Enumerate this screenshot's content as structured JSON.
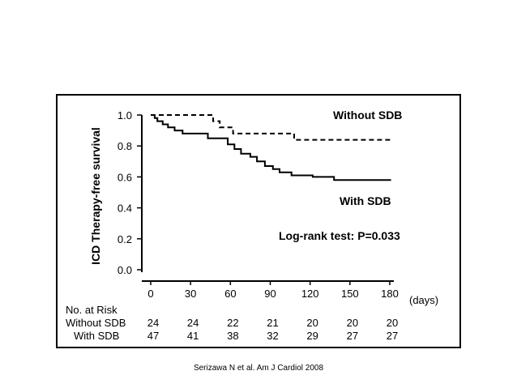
{
  "citation": "Serizawa N et al.  Am J Cardiol 2008",
  "chart_data": {
    "type": "line",
    "step": true,
    "ylabel": "ICD Therapy-free survival",
    "x_unit": "(days)",
    "xlim": [
      0,
      180
    ],
    "ylim": [
      0,
      1
    ],
    "x_ticks": [
      0,
      30,
      60,
      90,
      120,
      150,
      180
    ],
    "y_ticks": [
      "0.0",
      "0.2",
      "0.4",
      "0.6",
      "0.8",
      "1.0"
    ],
    "series": [
      {
        "name": "Without SDB",
        "style": "dashed",
        "points": [
          [
            0,
            1.0
          ],
          [
            47,
            1.0
          ],
          [
            47,
            0.96
          ],
          [
            52,
            0.96
          ],
          [
            52,
            0.92
          ],
          [
            62,
            0.92
          ],
          [
            62,
            0.88
          ],
          [
            108,
            0.88
          ],
          [
            108,
            0.84
          ],
          [
            181,
            0.84
          ]
        ]
      },
      {
        "name": "With SDB",
        "style": "solid",
        "points": [
          [
            0,
            1.0
          ],
          [
            3,
            1.0
          ],
          [
            3,
            0.98
          ],
          [
            5,
            0.98
          ],
          [
            5,
            0.96
          ],
          [
            9,
            0.96
          ],
          [
            9,
            0.94
          ],
          [
            13,
            0.94
          ],
          [
            13,
            0.92
          ],
          [
            18,
            0.92
          ],
          [
            18,
            0.9
          ],
          [
            24,
            0.9
          ],
          [
            24,
            0.88
          ],
          [
            43,
            0.88
          ],
          [
            43,
            0.85
          ],
          [
            58,
            0.85
          ],
          [
            58,
            0.81
          ],
          [
            63,
            0.81
          ],
          [
            63,
            0.78
          ],
          [
            68,
            0.78
          ],
          [
            68,
            0.75
          ],
          [
            75,
            0.75
          ],
          [
            75,
            0.73
          ],
          [
            80,
            0.73
          ],
          [
            80,
            0.7
          ],
          [
            86,
            0.7
          ],
          [
            86,
            0.67
          ],
          [
            92,
            0.67
          ],
          [
            92,
            0.65
          ],
          [
            97,
            0.65
          ],
          [
            97,
            0.63
          ],
          [
            106,
            0.63
          ],
          [
            106,
            0.61
          ],
          [
            122,
            0.61
          ],
          [
            122,
            0.6
          ],
          [
            138,
            0.6
          ],
          [
            138,
            0.58
          ],
          [
            181,
            0.58
          ]
        ]
      }
    ],
    "annotations": {
      "without_label": "Without SDB",
      "with_label": "With SDB",
      "logrank": "Log-rank test: P=0.033"
    },
    "at_risk": {
      "title": "No. at Risk",
      "rows": [
        {
          "label": "Without SDB",
          "values": [
            "24",
            "24",
            "22",
            "21",
            "20",
            "20",
            "20"
          ]
        },
        {
          "label": "With SDB",
          "values": [
            "47",
            "41",
            "38",
            "32",
            "29",
            "27",
            "27"
          ]
        }
      ]
    }
  }
}
